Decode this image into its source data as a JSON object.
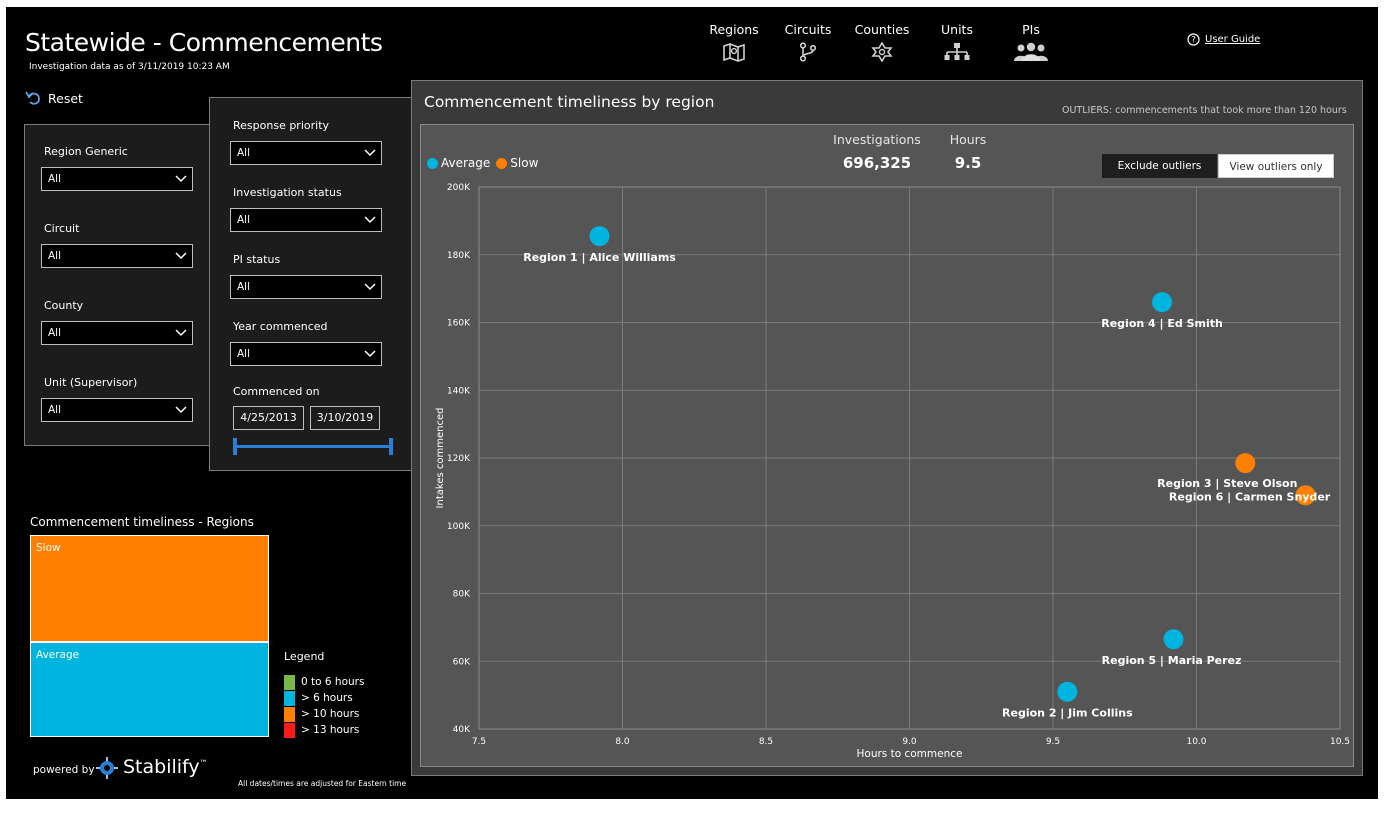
{
  "header": {
    "title": "Statewide - Commencements",
    "subtitle": "Investigation data as of 3/11/2019 10:23 AM"
  },
  "nav": [
    {
      "label": "Regions",
      "icon": "map-icon"
    },
    {
      "label": "Circuits",
      "icon": "branch-icon"
    },
    {
      "label": "Counties",
      "icon": "star-icon"
    },
    {
      "label": "Units",
      "icon": "hierarchy-icon"
    },
    {
      "label": "PIs",
      "icon": "people-icon"
    }
  ],
  "user_guide": {
    "label": "User Guide",
    "icon": "help-circle-icon"
  },
  "reset": {
    "label": "Reset",
    "icon": "undo-icon"
  },
  "filters_left": [
    {
      "label": "Region Generic",
      "value": "All"
    },
    {
      "label": "Circuit",
      "value": "All"
    },
    {
      "label": "County",
      "value": "All"
    },
    {
      "label": "Unit (Supervisor)",
      "value": "All"
    }
  ],
  "filters_right": [
    {
      "label": "Response priority",
      "value": "All"
    },
    {
      "label": "Investigation status",
      "value": "All"
    },
    {
      "label": "PI status",
      "value": "All"
    },
    {
      "label": "Year commenced",
      "value": "All"
    }
  ],
  "commenced_on": {
    "label": "Commenced on",
    "start": "4/25/2013",
    "end": "3/10/2019"
  },
  "treemap": {
    "title": "Commencement timeliness - Regions",
    "cells": [
      {
        "label": "Slow",
        "color": "#ff7f00"
      },
      {
        "label": "Average",
        "color": "#00b4e0"
      }
    ]
  },
  "legend": {
    "title": "Legend",
    "items": [
      {
        "label": "0 to 6 hours",
        "color": "#7ab648"
      },
      {
        "label": "> 6 hours",
        "color": "#00b4e0"
      },
      {
        "label": "> 10 hours",
        "color": "#ff7f00"
      },
      {
        "label": "> 13 hours",
        "color": "#ff1a1a"
      }
    ]
  },
  "footer": {
    "powered_by": "powered by",
    "brand": "Stabilify",
    "trademark": "™",
    "note": "All dates/times are adjusted for Eastern time"
  },
  "scatter": {
    "title": "Commencement timeliness by region",
    "outliers_note": "OUTLIERS: commencements that took more than 120 hours",
    "kpis": [
      {
        "label": "Investigations",
        "value": "696,325"
      },
      {
        "label": "Hours",
        "value": "9.5"
      }
    ],
    "buttons": {
      "exclude": "Exclude outliers",
      "view": "View outliers only"
    }
  },
  "chart_data": {
    "type": "scatter",
    "xlabel": "Hours to commence",
    "ylabel": "Intakes commenced",
    "xlim": [
      7.5,
      10.5
    ],
    "ylim": [
      40000,
      200000
    ],
    "x_ticks": [
      "7.5",
      "8.0",
      "8.5",
      "9.0",
      "9.5",
      "10.0",
      "10.5"
    ],
    "y_ticks": [
      "40K",
      "60K",
      "80K",
      "100K",
      "120K",
      "140K",
      "160K",
      "180K",
      "200K"
    ],
    "grid": true,
    "legend_position": "top-left",
    "series": [
      {
        "name": "Average",
        "color": "#00b4e0",
        "points": [
          {
            "label": "Region 1 | Alice Williams",
            "x": 7.92,
            "y": 185500
          },
          {
            "label": "Region 4 | Ed Smith",
            "x": 9.88,
            "y": 166000
          },
          {
            "label": "Region 5 | Maria Perez",
            "x": 9.92,
            "y": 66500
          },
          {
            "label": "Region 2 | Jim Collins",
            "x": 9.55,
            "y": 51000
          }
        ]
      },
      {
        "name": "Slow",
        "color": "#ff7f00",
        "points": [
          {
            "label": "Region 3 | Steve Olson",
            "x": 10.17,
            "y": 118500
          },
          {
            "label": "Region 6 | Carmen Snyder",
            "x": 10.38,
            "y": 109000
          }
        ]
      }
    ]
  }
}
